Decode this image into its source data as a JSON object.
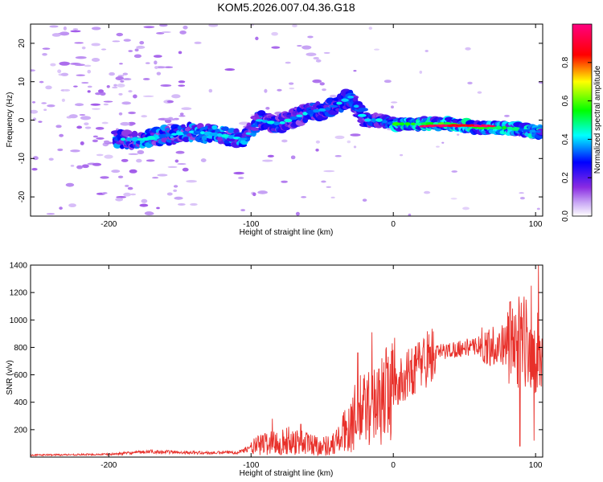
{
  "title": "KOM5.2026.007.04.36.G18",
  "chart_data": [
    {
      "type": "heatmap",
      "xlabel": "Height of straight line (km)",
      "ylabel": "Frequency (Hz)",
      "xlim": [
        -255,
        105
      ],
      "ylim": [
        -25,
        25
      ],
      "xticks": [
        -200,
        -100,
        0,
        100
      ],
      "yticks": [
        -20,
        -10,
        0,
        10,
        20
      ],
      "colorbar": {
        "label": "Normalized spectral amplitude",
        "range": [
          0,
          1
        ],
        "ticks": [
          "0.0",
          "0.2",
          "0.4",
          "0.6",
          "0.8"
        ],
        "colors": [
          "#ffffff",
          "#8a2be2",
          "#0000ff",
          "#00ffff",
          "#00ff00",
          "#ffff00",
          "#ff0000",
          "#ff0080"
        ]
      },
      "ridge": [
        {
          "x": -190,
          "y": -5
        },
        {
          "x": -175,
          "y": -5
        },
        {
          "x": -160,
          "y": -4
        },
        {
          "x": -140,
          "y": -3
        },
        {
          "x": -120,
          "y": -4
        },
        {
          "x": -105,
          "y": -5
        },
        {
          "x": -95,
          "y": 0
        },
        {
          "x": -80,
          "y": -1
        },
        {
          "x": -60,
          "y": 2
        },
        {
          "x": -45,
          "y": 3
        },
        {
          "x": -30,
          "y": 6
        },
        {
          "x": -20,
          "y": 0
        },
        {
          "x": -10,
          "y": 0
        },
        {
          "x": 0,
          "y": -1
        },
        {
          "x": 20,
          "y": -1
        },
        {
          "x": 40,
          "y": -1
        },
        {
          "x": 60,
          "y": -2
        },
        {
          "x": 80,
          "y": -2
        },
        {
          "x": 100,
          "y": -3
        }
      ],
      "peak_segments": [
        {
          "x_start": 20,
          "x_end": 70,
          "y": -1.5,
          "value": 1.0
        },
        {
          "x_start": 40,
          "x_end": 55,
          "y": -1.4,
          "value": 0.9
        }
      ]
    },
    {
      "type": "line",
      "xlabel": "Height of straight line (km)",
      "ylabel": "SNR (v/v)",
      "xlim": [
        -255,
        105
      ],
      "ylim": [
        0,
        1400
      ],
      "xticks": [
        -200,
        -100,
        0,
        100
      ],
      "yticks": [
        200,
        400,
        600,
        800,
        1000,
        1200,
        1400
      ],
      "color": "#e8302a",
      "envelope": [
        {
          "x": -255,
          "y": 15
        },
        {
          "x": -200,
          "y": 20
        },
        {
          "x": -170,
          "y": 40
        },
        {
          "x": -130,
          "y": 30
        },
        {
          "x": -110,
          "y": 35
        },
        {
          "x": -90,
          "y": 100
        },
        {
          "x": -70,
          "y": 120
        },
        {
          "x": -50,
          "y": 80
        },
        {
          "x": -40,
          "y": 100
        },
        {
          "x": -30,
          "y": 250
        },
        {
          "x": -20,
          "y": 350
        },
        {
          "x": -10,
          "y": 400
        },
        {
          "x": 0,
          "y": 500
        },
        {
          "x": 10,
          "y": 600
        },
        {
          "x": 20,
          "y": 700
        },
        {
          "x": 30,
          "y": 760
        },
        {
          "x": 50,
          "y": 800
        },
        {
          "x": 70,
          "y": 810
        },
        {
          "x": 85,
          "y": 830
        },
        {
          "x": 95,
          "y": 850
        },
        {
          "x": 105,
          "y": 700
        }
      ],
      "spikes": [
        {
          "x": -85,
          "y": 280
        },
        {
          "x": -65,
          "y": 240
        },
        {
          "x": -40,
          "y": 200
        },
        {
          "x": -25,
          "y": 760
        },
        {
          "x": -15,
          "y": 910
        },
        {
          "x": -5,
          "y": 800
        },
        {
          "x": 1,
          "y": 870
        },
        {
          "x": 12,
          "y": 700
        },
        {
          "x": 27,
          "y": 800
        },
        {
          "x": 60,
          "y": 880
        },
        {
          "x": 70,
          "y": 950
        },
        {
          "x": 82,
          "y": 1130
        },
        {
          "x": 92,
          "y": 1170
        },
        {
          "x": 97,
          "y": 1250
        },
        {
          "x": 102,
          "y": 1400
        },
        {
          "x": 89,
          "y": 80
        },
        {
          "x": 99,
          "y": 120
        }
      ]
    }
  ]
}
